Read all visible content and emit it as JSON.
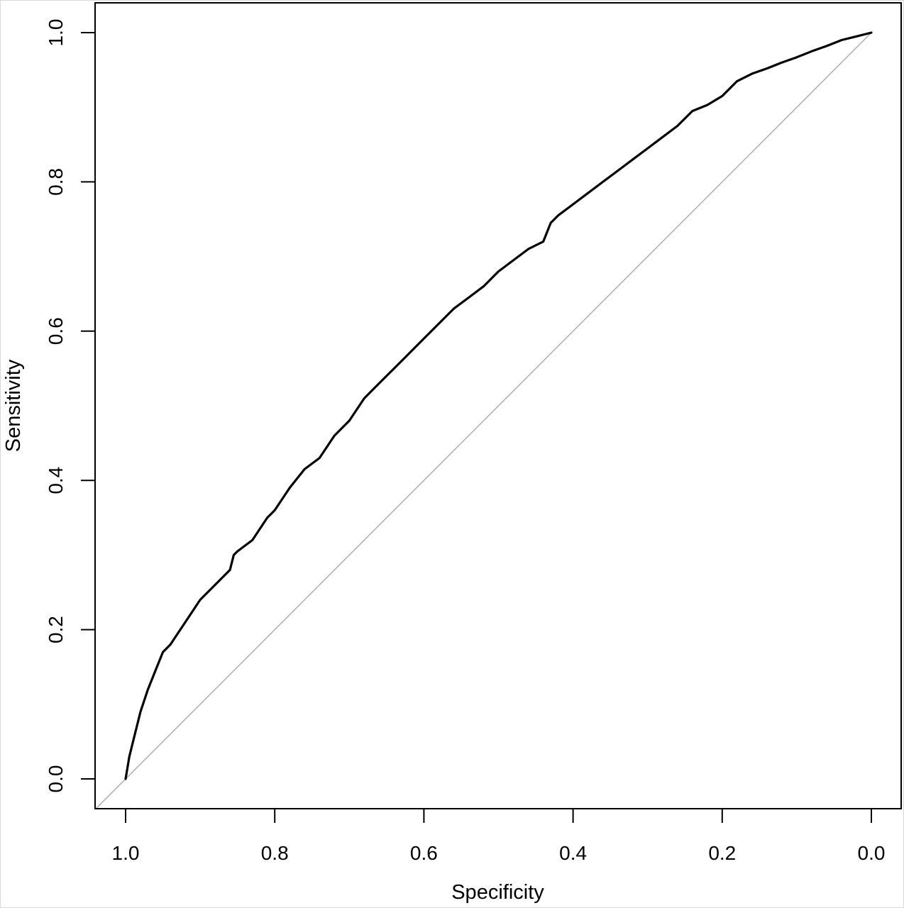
{
  "chart_data": {
    "type": "line",
    "title": "",
    "xlabel": "Specificity",
    "ylabel": "Sensitivity",
    "xlim": [
      1.0,
      0.0
    ],
    "ylim": [
      0.0,
      1.0
    ],
    "x_reversed": true,
    "grid": false,
    "legend": "none",
    "x_ticks": [
      1.0,
      0.8,
      0.6,
      0.4,
      0.2,
      0.0
    ],
    "x_tick_labels": [
      "1.0",
      "0.8",
      "0.6",
      "0.4",
      "0.2",
      "0.0"
    ],
    "y_ticks": [
      0.0,
      0.2,
      0.4,
      0.6,
      0.8,
      1.0
    ],
    "y_tick_labels": [
      "0.0",
      "0.2",
      "0.4",
      "0.6",
      "0.8",
      "1.0"
    ],
    "series": [
      {
        "color": "#000000",
        "x": [
          1.0,
          0.995,
          0.99,
          0.98,
          0.97,
          0.96,
          0.95,
          0.94,
          0.92,
          0.9,
          0.88,
          0.86,
          0.855,
          0.85,
          0.83,
          0.81,
          0.8,
          0.78,
          0.76,
          0.74,
          0.72,
          0.7,
          0.68,
          0.66,
          0.64,
          0.62,
          0.6,
          0.58,
          0.56,
          0.54,
          0.52,
          0.5,
          0.48,
          0.46,
          0.44,
          0.43,
          0.42,
          0.4,
          0.38,
          0.36,
          0.34,
          0.32,
          0.3,
          0.28,
          0.26,
          0.24,
          0.22,
          0.2,
          0.18,
          0.16,
          0.14,
          0.12,
          0.1,
          0.08,
          0.06,
          0.04,
          0.02,
          0.0
        ],
        "y": [
          0.0,
          0.03,
          0.05,
          0.09,
          0.12,
          0.145,
          0.17,
          0.18,
          0.21,
          0.24,
          0.26,
          0.28,
          0.3,
          0.305,
          0.32,
          0.35,
          0.36,
          0.39,
          0.415,
          0.43,
          0.46,
          0.48,
          0.51,
          0.53,
          0.55,
          0.57,
          0.59,
          0.61,
          0.63,
          0.645,
          0.66,
          0.68,
          0.695,
          0.71,
          0.72,
          0.745,
          0.755,
          0.77,
          0.785,
          0.8,
          0.815,
          0.83,
          0.845,
          0.86,
          0.875,
          0.895,
          0.903,
          0.915,
          0.935,
          0.945,
          0.952,
          0.96,
          0.967,
          0.975,
          0.982,
          0.99,
          0.995,
          1.0
        ]
      },
      {
        "color": "#aaaaaa",
        "x": [
          1.04,
          0.0
        ],
        "y": [
          -0.04,
          1.0
        ]
      }
    ]
  }
}
